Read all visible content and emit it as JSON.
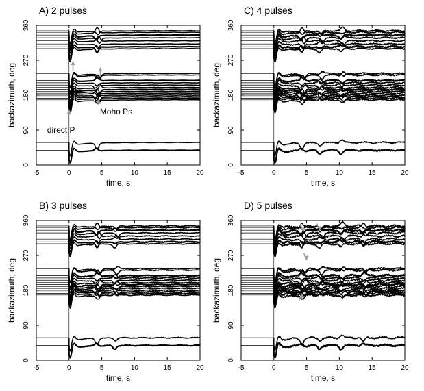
{
  "colors": {
    "trace": "#000000",
    "arrow": "#9a9a9a",
    "background": "#ffffff"
  },
  "chart_data": [
    {
      "type": "line",
      "title": "A) 2 pulses",
      "xlabel": "time, s",
      "ylabel": "backazimuth, deg",
      "xlim": [
        -5,
        20
      ],
      "ylim": [
        0,
        360
      ],
      "xticks": [
        "-5",
        "0",
        "5",
        "10",
        "15",
        "20"
      ],
      "yticks": [
        "0",
        "90",
        "180",
        "270",
        "360"
      ],
      "pulses": 2,
      "onset_time": 0,
      "backazimuths": [
        38,
        58,
        168,
        172,
        176,
        180,
        185,
        190,
        195,
        200,
        206,
        212,
        218,
        232,
        236,
        300,
        305,
        312,
        320,
        328,
        335,
        342,
        346
      ],
      "annotations": [
        {
          "text": "direct P",
          "x": 0,
          "y": 125
        },
        {
          "text": "Moho Ps",
          "x": 4.5,
          "y": 155
        }
      ]
    },
    {
      "type": "line",
      "title": "C) 4 pulses",
      "xlabel": "time, s",
      "ylabel": "backazimuth, deg",
      "xlim": [
        -5,
        20
      ],
      "ylim": [
        0,
        360
      ],
      "xticks": [
        "-5",
        "0",
        "5",
        "10",
        "15",
        "20"
      ],
      "yticks": [
        "0",
        "90",
        "180",
        "270",
        "360"
      ],
      "pulses": 4,
      "onset_time": 0,
      "backazimuths": [
        38,
        58,
        168,
        172,
        176,
        180,
        185,
        190,
        195,
        200,
        206,
        212,
        218,
        232,
        236,
        300,
        305,
        312,
        320,
        328,
        335,
        342,
        346
      ],
      "annotations": []
    },
    {
      "type": "line",
      "title": "B) 3 pulses",
      "xlabel": "time, s",
      "ylabel": "backazimuth, deg",
      "xlim": [
        -5,
        20
      ],
      "ylim": [
        0,
        360
      ],
      "xticks": [
        "-5",
        "0",
        "5",
        "10",
        "15",
        "20"
      ],
      "yticks": [
        "0",
        "90",
        "180",
        "270",
        "360"
      ],
      "pulses": 3,
      "onset_time": 0,
      "backazimuths": [
        38,
        58,
        168,
        172,
        176,
        180,
        185,
        190,
        195,
        200,
        206,
        212,
        218,
        232,
        236,
        300,
        305,
        312,
        320,
        328,
        335,
        342,
        346
      ],
      "annotations": []
    },
    {
      "type": "line",
      "title": "D) 5 pulses",
      "xlabel": "time, s",
      "ylabel": "backazimuth, deg",
      "xlim": [
        -5,
        20
      ],
      "ylim": [
        0,
        360
      ],
      "xticks": [
        "-5",
        "0",
        "5",
        "10",
        "15",
        "20"
      ],
      "yticks": [
        "0",
        "90",
        "180",
        "270",
        "360"
      ],
      "pulses": 5,
      "onset_time": 0,
      "backazimuths": [
        38,
        58,
        168,
        172,
        176,
        180,
        185,
        190,
        195,
        200,
        206,
        212,
        218,
        232,
        236,
        300,
        305,
        312,
        320,
        328,
        335,
        342,
        346
      ],
      "annotations": []
    }
  ]
}
